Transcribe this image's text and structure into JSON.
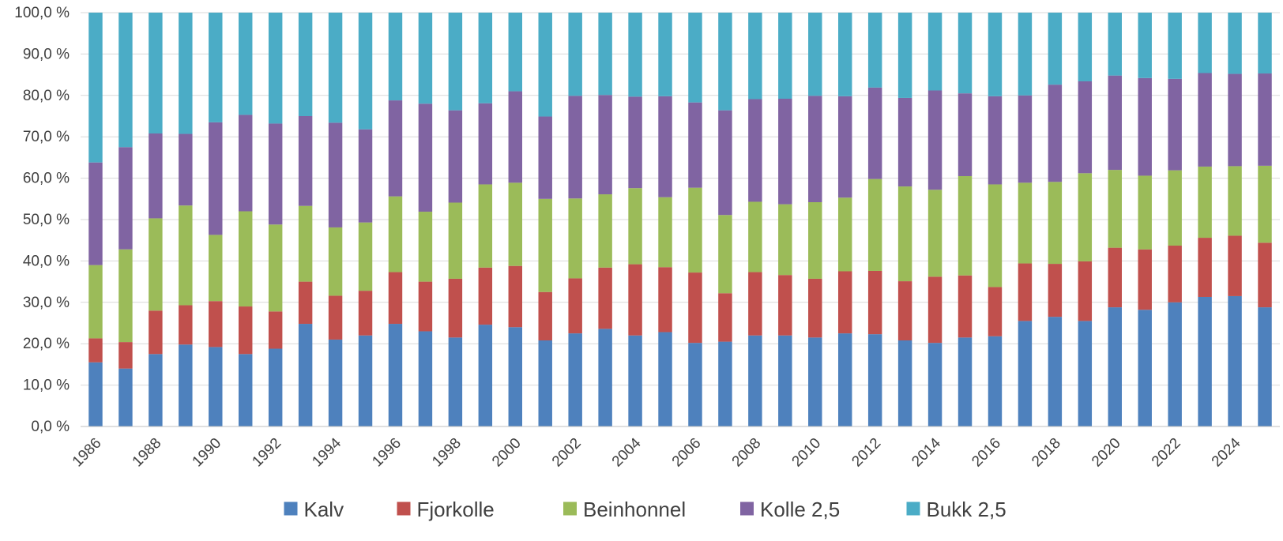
{
  "chart_data": {
    "type": "bar",
    "stacked": true,
    "normalized_percent": true,
    "categories": [
      "1986",
      "1987",
      "1988",
      "1989",
      "1990",
      "1991",
      "1992",
      "1993",
      "1994",
      "1995",
      "1996",
      "1997",
      "1998",
      "1999",
      "2000",
      "2001",
      "2002",
      "2003",
      "2004",
      "2005",
      "2006",
      "2007",
      "2008",
      "2009",
      "2010",
      "2011",
      "2012",
      "2013",
      "2014",
      "2015",
      "2016",
      "2017",
      "2018",
      "2019",
      "2020",
      "2021",
      "2022",
      "2023",
      "2024",
      "2025"
    ],
    "x_tick_labels": [
      "1986",
      "1988",
      "1990",
      "1992",
      "1994",
      "1996",
      "1998",
      "2000",
      "2002",
      "2004",
      "2006",
      "2008",
      "2010",
      "2012",
      "2014",
      "2016",
      "2018",
      "2020",
      "2022",
      "2024"
    ],
    "y_tick_labels": [
      "0,0 %",
      "10,0 %",
      "20,0 %",
      "30,0 %",
      "40,0 %",
      "50,0 %",
      "60,0 %",
      "70,0 %",
      "80,0 %",
      "90,0 %",
      "100,0 %"
    ],
    "ylim": [
      0,
      100
    ],
    "grid": true,
    "legend_position": "bottom",
    "series": [
      {
        "name": "Kalv",
        "color": "#4e81bd",
        "values": [
          15.5,
          14,
          17.5,
          19.8,
          19.2,
          17.5,
          18.8,
          24.8,
          21,
          22,
          24.8,
          23,
          21.5,
          24.6,
          24,
          20.8,
          22.5,
          23.6,
          22,
          22.8,
          20.2,
          20.5,
          22,
          22,
          21.5,
          22.5,
          22.3,
          20.8,
          20.2,
          21.5,
          21.8,
          25.5,
          26.5,
          25.5,
          28.8,
          28.2,
          30,
          31.3,
          31.5,
          28.8
        ]
      },
      {
        "name": "Fjorkolle",
        "color": "#c0504d",
        "values": [
          5.8,
          6.4,
          10.5,
          9.5,
          11.1,
          11.5,
          9,
          10.2,
          10.6,
          10.8,
          12.5,
          12,
          14.2,
          13.8,
          14.8,
          11.7,
          13.3,
          14.8,
          17.2,
          15.7,
          17,
          11.7,
          15.3,
          14.6,
          14.2,
          15,
          15.3,
          14.3,
          16,
          15,
          11.9,
          13.9,
          12.8,
          14.4,
          14.4,
          14.6,
          13.7,
          14.3,
          14.6,
          15.6
        ]
      },
      {
        "name": "Beinhonnel",
        "color": "#9bbb59",
        "values": [
          17.7,
          22.4,
          22.3,
          24.1,
          16,
          23,
          21,
          18.3,
          16.5,
          16.5,
          18.3,
          16.9,
          18.4,
          20.1,
          20.1,
          22.5,
          19.3,
          17.7,
          18.4,
          16.9,
          20.5,
          18.9,
          17,
          17.1,
          18.5,
          17.8,
          22.2,
          22.9,
          21,
          24,
          24.8,
          19.5,
          19.8,
          21.3,
          18.8,
          17.8,
          18.2,
          17.2,
          16.8,
          18.6
        ]
      },
      {
        "name": "Kolle 2,5",
        "color": "#8064a2",
        "values": [
          24.8,
          24.7,
          20.5,
          17.3,
          27.2,
          23.3,
          24.4,
          21.7,
          25.3,
          22.5,
          23.2,
          26.1,
          22.3,
          19.6,
          22.1,
          19.9,
          24.8,
          24,
          22.1,
          24.4,
          20.6,
          25.3,
          24.8,
          25.5,
          25.7,
          24.5,
          22.1,
          21.4,
          24,
          20,
          21.3,
          21.1,
          23.5,
          22.2,
          22.8,
          23.6,
          22.1,
          22.6,
          22.3,
          22.3
        ]
      },
      {
        "name": "Bukk 2,5",
        "color": "#4bacc6",
        "values": [
          36.2,
          32.5,
          29.2,
          29.3,
          26.5,
          24.7,
          26.8,
          25,
          26.6,
          28.2,
          21.2,
          22,
          23.6,
          21.9,
          19,
          25.1,
          20.1,
          19.9,
          20.3,
          20.2,
          21.7,
          23.6,
          20.9,
          20.8,
          20.1,
          20.2,
          18.1,
          20.6,
          18.8,
          19.5,
          20.2,
          20,
          17.4,
          16.6,
          15.2,
          15.8,
          16,
          14.6,
          14.8,
          14.7
        ]
      }
    ]
  }
}
